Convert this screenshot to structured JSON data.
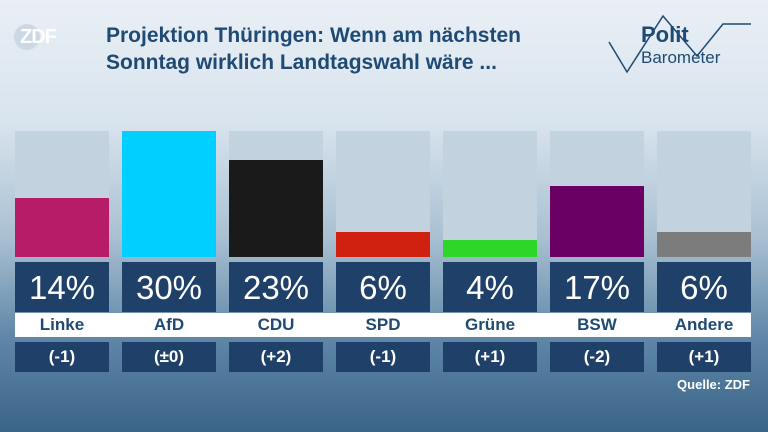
{
  "logo": {
    "text": "ZDF"
  },
  "title_line1": "Projektion Thüringen: Wenn am nächsten",
  "title_line2": "Sonntag wirklich Landtagswahl wäre ...",
  "brand": {
    "line1": "Polit",
    "line2": "Barometer"
  },
  "source": "Quelle: ZDF",
  "chart_data": {
    "type": "bar",
    "ylim": [
      0,
      30
    ],
    "categories": [
      "Linke",
      "AfD",
      "CDU",
      "SPD",
      "Grüne",
      "BSW",
      "Andere"
    ],
    "values": [
      14,
      30,
      23,
      6,
      4,
      17,
      6
    ],
    "value_labels": [
      "14%",
      "30%",
      "23%",
      "6%",
      "4%",
      "17%",
      "6%"
    ],
    "changes": [
      "(-1)",
      "(±0)",
      "(+2)",
      "(-1)",
      "(+1)",
      "(-2)",
      "(+1)"
    ],
    "colors": [
      "#b71c68",
      "#00cfff",
      "#1a1a1a",
      "#d0200f",
      "#2ed62a",
      "#6a0063",
      "#7c7c7c"
    ]
  }
}
